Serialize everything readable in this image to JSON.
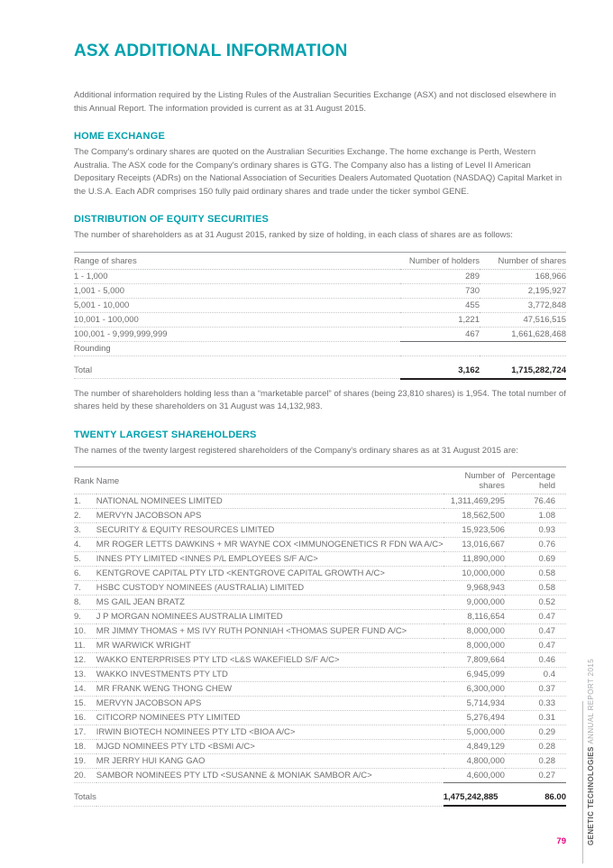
{
  "page": {
    "title": "ASX ADDITIONAL INFORMATION",
    "intro": "Additional information required by the Listing Rules of the Australian Securities Exchange (ASX) and not disclosed elsewhere in this Annual Report. The information provided is current as at 31 August 2015.",
    "page_number": "79",
    "sidebar": {
      "brand": "GENETIC TECHNOLOGIES",
      "report": "ANNUAL REPORT 2015"
    }
  },
  "colors": {
    "accent_teal": "#00A1AE",
    "page_number_pink": "#E5007D",
    "body_gray": "#6d6e71",
    "totals_dark": "#231f20"
  },
  "sections": {
    "home_exchange": {
      "heading": "HOME EXCHANGE",
      "body": "The Company's ordinary shares are quoted on the Australian Securities Exchange. The home exchange is Perth, Western Australia. The ASX code for the Company's ordinary shares is GTG. The Company also has a listing of Level II American Depositary Receipts (ADRs) on the National Association of Securities Dealers Automated Quotation (NASDAQ) Capital Market in the U.S.A. Each ADR comprises 150 fully paid ordinary shares and trade under the ticker symbol GENE."
    },
    "distribution": {
      "heading": "DISTRIBUTION OF EQUITY SECURITIES",
      "body": "The number of shareholders as at 31 August 2015, ranked by size of holding, in each class of shares are as follows:",
      "table": {
        "columns": [
          "Range of shares",
          "Number of holders",
          "Number of shares"
        ],
        "rows": [
          [
            "1 - 1,000",
            "289",
            "168,966"
          ],
          [
            "1,001 - 5,000",
            "730",
            "2,195,927"
          ],
          [
            "5,001 - 10,000",
            "455",
            "3,772,848"
          ],
          [
            "10,001 - 100,000",
            "1,221",
            "47,516,515"
          ],
          [
            "100,001 - 9,999,999,999",
            "467",
            "1,661,628,468"
          ],
          [
            "Rounding",
            "",
            ""
          ]
        ],
        "total": {
          "label": "Total",
          "holders": "3,162",
          "shares": "1,715,282,724"
        }
      },
      "note": "The number of shareholders holding less than a “marketable parcel” of shares (being 23,810 shares) is 1,954. The total number of shares held by these shareholders on 31 August was 14,132,983."
    },
    "shareholders": {
      "heading": "TWENTY LARGEST SHAREHOLDERS",
      "body": "The names of the twenty largest registered shareholders of the Company's ordinary shares as at 31 August 2015 are:",
      "table": {
        "columns": [
          "Rank",
          "Name",
          "Number of shares",
          "Percentage held"
        ],
        "rows": [
          [
            "1.",
            "NATIONAL NOMINEES LIMITED",
            "1,311,469,295",
            "76.46"
          ],
          [
            "2.",
            "MERVYN JACOBSON APS",
            "18,562,500",
            "1.08"
          ],
          [
            "3.",
            "SECURITY & EQUITY RESOURCES LIMITED",
            "15,923,506",
            "0.93"
          ],
          [
            "4.",
            "MR ROGER LETTS DAWKINS + MR WAYNE COX <IMMUNOGENETICS R FDN WA A/C>",
            "13,016,667",
            "0.76"
          ],
          [
            "5.",
            "INNES PTY LIMITED <INNES P/L EMPLOYEES S/F A/C>",
            "11,890,000",
            "0.69"
          ],
          [
            "6.",
            "KENTGROVE CAPITAL PTY LTD <KENTGROVE CAPITAL GROWTH A/C>",
            "10,000,000",
            "0.58"
          ],
          [
            "7.",
            "HSBC CUSTODY NOMINEES (AUSTRALIA) LIMITED",
            "9,968,943",
            "0.58"
          ],
          [
            "8.",
            "MS GAIL JEAN BRATZ",
            "9,000,000",
            "0.52"
          ],
          [
            "9.",
            "J P MORGAN NOMINEES AUSTRALIA LIMITED",
            "8,116,654",
            "0.47"
          ],
          [
            "10.",
            "MR JIMMY THOMAS + MS IVY RUTH PONNIAH <THOMAS SUPER FUND A/C>",
            "8,000,000",
            "0.47"
          ],
          [
            "11.",
            "MR WARWICK WRIGHT",
            "8,000,000",
            "0.47"
          ],
          [
            "12.",
            "WAKKO ENTERPRISES PTY LTD <L&S WAKEFIELD S/F A/C>",
            "7,809,664",
            "0.46"
          ],
          [
            "13.",
            "WAKKO INVESTMENTS PTY LTD",
            "6,945,099",
            "0.4"
          ],
          [
            "14.",
            "MR FRANK WENG THONG CHEW",
            "6,300,000",
            "0.37"
          ],
          [
            "15.",
            "MERVYN JACOBSON APS",
            "5,714,934",
            "0.33"
          ],
          [
            "16.",
            "CITICORP NOMINEES PTY LIMITED",
            "5,276,494",
            "0.31"
          ],
          [
            "17.",
            "IRWIN BIOTECH NOMINEES PTY LTD <BIOA A/C>",
            "5,000,000",
            "0.29"
          ],
          [
            "18.",
            "MJGD NOMINEES PTY LTD <BSMI A/C>",
            "4,849,129",
            "0.28"
          ],
          [
            "19.",
            "MR JERRY HUI KANG GAO",
            "4,800,000",
            "0.28"
          ],
          [
            "20.",
            "SAMBOR NOMINEES PTY LTD <SUSANNE & MONIAK SAMBOR A/C>",
            "4,600,000",
            "0.27"
          ]
        ],
        "total": {
          "label": "Totals",
          "shares": "1,475,242,885",
          "percent": "86.00"
        }
      }
    }
  }
}
